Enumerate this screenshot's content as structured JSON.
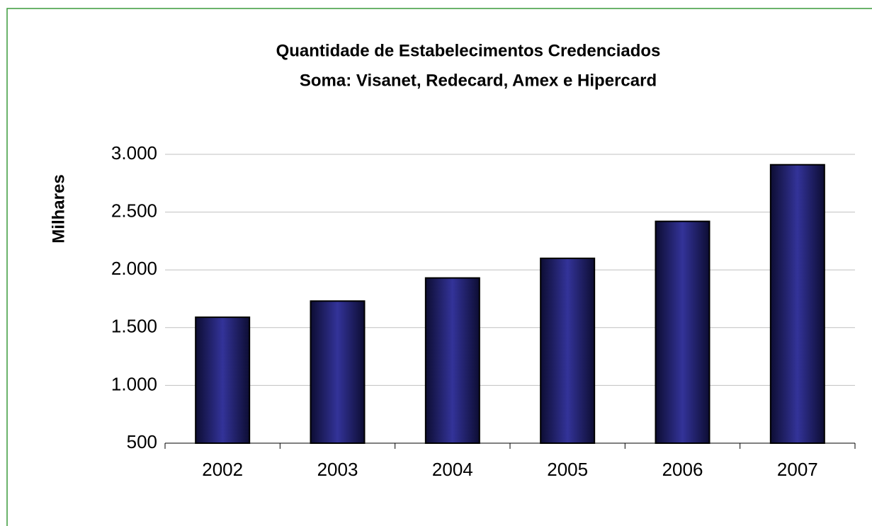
{
  "chart_data": {
    "type": "bar",
    "title": "Quantidade de Estabelecimentos Credenciados",
    "subtitle": "Soma: Visanet, Redecard, Amex e Hipercard",
    "y_label": "Milhares",
    "categories": [
      "2002",
      "2003",
      "2004",
      "2005",
      "2006",
      "2007"
    ],
    "values": [
      1590,
      1730,
      1930,
      2100,
      2420,
      2910
    ],
    "color": "#333399",
    "ylim": [
      500,
      3000
    ],
    "yticks": [
      500,
      {
        "value": 1000,
        "label": "1.000"
      },
      {
        "value": 1500,
        "label": "1.500"
      },
      {
        "value": 2000,
        "label": "2.000"
      },
      {
        "value": 2500,
        "label": "2.500"
      },
      {
        "value": 3000,
        "label": "3.000"
      }
    ],
    "grid": true
  }
}
